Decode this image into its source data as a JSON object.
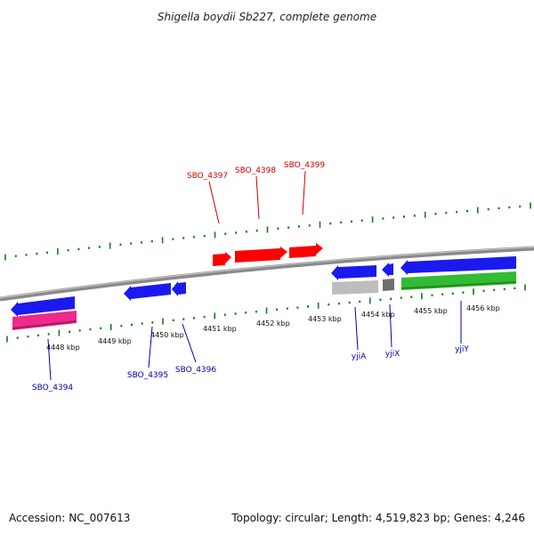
{
  "title": "Shigella boydii Sb227, complete genome",
  "footer": {
    "accession": "Accession: NC_007613",
    "topology": "Topology: circular; Length: 4,519,823 bp; Genes: 4,246"
  },
  "colors": {
    "backbone": "#8a8a8a",
    "ticks": "#1a7a1a",
    "label_forward": "#cc0000",
    "label_reverse": "#0000aa",
    "gene_red": "#ff0000",
    "gene_blue": "#1a1aee",
    "gene_magenta": "#ee2a8a",
    "gene_grey": "#bdbdbd",
    "gene_darkgrey": "#6e6e6e",
    "gene_green": "#33bb33"
  },
  "kbp_labels": [
    "4448 kbp",
    "4449 kbp",
    "4450 kbp",
    "4451 kbp",
    "4452 kbp",
    "4453 kbp",
    "4454 kbp",
    "4455 kbp",
    "4456 kbp"
  ],
  "gene_labels": [
    {
      "text": "SBO_4397",
      "strand": "forward"
    },
    {
      "text": "SBO_4398",
      "strand": "forward"
    },
    {
      "text": "SBO_4399",
      "strand": "forward"
    },
    {
      "text": "SBO_4394",
      "strand": "reverse"
    },
    {
      "text": "SBO_4395",
      "strand": "reverse"
    },
    {
      "text": "SBO_4396",
      "strand": "reverse"
    },
    {
      "text": "yjiA",
      "strand": "reverse"
    },
    {
      "text": "yjiX",
      "strand": "reverse"
    },
    {
      "text": "yjiY",
      "strand": "reverse"
    }
  ]
}
